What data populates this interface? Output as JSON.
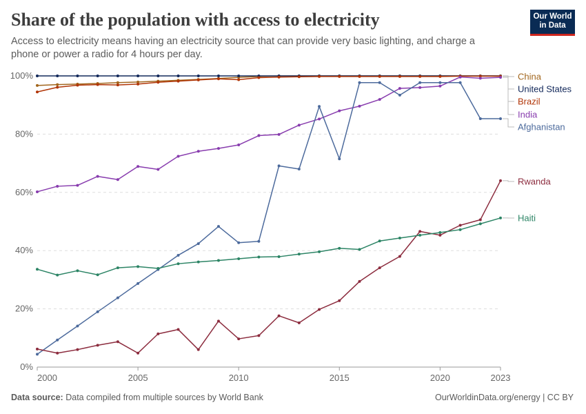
{
  "header": {
    "title": "Share of the population with access to electricity",
    "subtitle": "Access to electricity means having an electricity source that can provide very basic lighting, and charge a phone or power a radio for 4 hours per day.",
    "logo_line1": "Our World",
    "logo_line2": "in Data"
  },
  "footer": {
    "source_label": "Data source:",
    "source_text": "Data compiled from multiple sources by World Bank",
    "credit": "OurWorldinData.org/energy | CC BY"
  },
  "chart_data": {
    "type": "line",
    "title": "Share of the population with access to electricity",
    "xlabel": "",
    "ylabel": "",
    "xlim": [
      2000,
      2023
    ],
    "ylim": [
      0,
      100
    ],
    "x_ticks": [
      "2000",
      "2005",
      "2010",
      "2015",
      "2020",
      "2023"
    ],
    "x_tick_values": [
      2000,
      2005,
      2010,
      2015,
      2020,
      2023
    ],
    "y_ticks": [
      "0%",
      "20%",
      "40%",
      "60%",
      "80%",
      "100%"
    ],
    "y_tick_values": [
      0,
      20,
      40,
      60,
      80,
      100
    ],
    "grid": "horizontal dashed",
    "legend": "right, line-end labels",
    "x": [
      2000,
      2001,
      2002,
      2003,
      2004,
      2005,
      2006,
      2007,
      2008,
      2009,
      2010,
      2011,
      2012,
      2013,
      2014,
      2015,
      2016,
      2017,
      2018,
      2019,
      2020,
      2021,
      2022,
      2023
    ],
    "series": [
      {
        "name": "China",
        "color": "#a2661d",
        "values": [
          96.7,
          97.0,
          97.2,
          97.4,
          97.7,
          97.9,
          98.2,
          98.5,
          98.8,
          99.1,
          99.5,
          99.8,
          100,
          100,
          100,
          100,
          100,
          100,
          100,
          100,
          100,
          100,
          100,
          100
        ]
      },
      {
        "name": "United States",
        "color": "#12285a",
        "values": [
          100,
          100,
          100,
          100,
          100,
          100,
          100,
          100,
          100,
          100,
          100,
          100,
          100,
          100,
          100,
          100,
          100,
          100,
          100,
          100,
          100,
          100,
          100,
          100
        ]
      },
      {
        "name": "Brazil",
        "color": "#b13507",
        "values": [
          94.5,
          96.1,
          96.8,
          97.0,
          96.9,
          97.2,
          97.8,
          98.2,
          98.6,
          99.0,
          98.7,
          99.4,
          99.6,
          99.7,
          99.8,
          99.8,
          99.8,
          99.8,
          99.8,
          99.8,
          99.8,
          99.9,
          99.9,
          99.9
        ]
      },
      {
        "name": "India",
        "color": "#883cae",
        "values": [
          60.2,
          62.1,
          62.4,
          65.5,
          64.4,
          68.9,
          67.9,
          72.4,
          74.1,
          75.1,
          76.3,
          79.5,
          79.9,
          83.1,
          85.2,
          88.0,
          89.6,
          91.9,
          95.7,
          96.0,
          96.5,
          99.6,
          99.2,
          99.5
        ]
      },
      {
        "name": "Afghanistan",
        "color": "#4c6a9c",
        "values": [
          4.4,
          9.3,
          14.1,
          19.0,
          23.8,
          28.7,
          33.5,
          38.4,
          42.4,
          48.3,
          42.7,
          43.2,
          69.1,
          68.0,
          89.5,
          71.5,
          97.7,
          97.7,
          93.4,
          97.7,
          97.7,
          97.7,
          85.3,
          85.3
        ]
      },
      {
        "name": "Rwanda",
        "color": "#8c2c3e",
        "values": [
          6.2,
          4.8,
          6.0,
          7.5,
          8.7,
          4.8,
          11.4,
          12.9,
          6.0,
          15.8,
          9.7,
          10.8,
          17.6,
          15.2,
          19.8,
          22.8,
          29.4,
          34.1,
          38.0,
          46.6,
          45.3,
          48.7,
          50.6,
          64.0
        ]
      },
      {
        "name": "Haiti",
        "color": "#2c8465",
        "values": [
          33.6,
          31.6,
          33.1,
          31.7,
          34.1,
          34.5,
          33.9,
          35.5,
          36.1,
          36.6,
          37.2,
          37.8,
          37.9,
          38.8,
          39.6,
          40.8,
          40.4,
          43.3,
          44.3,
          45.3,
          46.2,
          47.2,
          49.2,
          51.2
        ]
      }
    ]
  }
}
